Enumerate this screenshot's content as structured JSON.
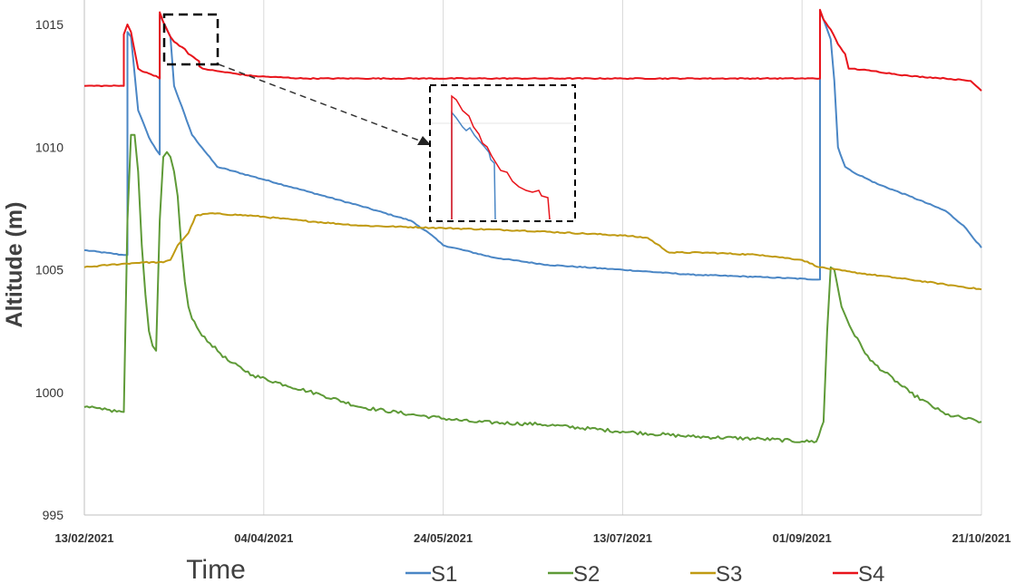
{
  "chart_data": {
    "type": "line",
    "xlabel": "Time",
    "ylabel": "Altitude (m)",
    "ylim": [
      995,
      1016
    ],
    "yticks": [
      995,
      1000,
      1005,
      1010,
      1015
    ],
    "xlim": [
      "2021-02-13",
      "2021-10-21"
    ],
    "xticks": [
      "13/02/2021",
      "04/04/2021",
      "24/05/2021",
      "13/07/2021",
      "01/09/2021",
      "21/10/2021"
    ],
    "grid": "vertical",
    "legend": "bottom",
    "series": [
      {
        "name": "S1",
        "color": "#4a86c5",
        "x": [
          "2021-02-13",
          "2021-02-24",
          "2021-02-25",
          "2021-02-25",
          "2021-02-26",
          "2021-02-28",
          "2021-03-03",
          "2021-03-05",
          "2021-03-06",
          "2021-03-06",
          "2021-03-07",
          "2021-03-09",
          "2021-03-10",
          "2021-03-15",
          "2021-03-22",
          "2021-04-01",
          "2021-04-16",
          "2021-05-01",
          "2021-05-15",
          "2021-05-20",
          "2021-05-24",
          "2021-06-07",
          "2021-06-22",
          "2021-07-13",
          "2021-08-01",
          "2021-08-21",
          "2021-09-06",
          "2021-09-06",
          "2021-09-07",
          "2021-09-09",
          "2021-09-10",
          "2021-09-11",
          "2021-09-13",
          "2021-09-15",
          "2021-09-22",
          "2021-10-01",
          "2021-10-11",
          "2021-10-16",
          "2021-10-21"
        ],
        "values": [
          1005.8,
          1005.6,
          1005.6,
          1014.7,
          1014.5,
          1011.5,
          1010.4,
          1009.9,
          1009.7,
          1015.4,
          1015.1,
          1014.5,
          1012.5,
          1010.5,
          1009.2,
          1008.8,
          1008.2,
          1007.6,
          1007.0,
          1006.5,
          1006.0,
          1005.5,
          1005.2,
          1005.0,
          1004.8,
          1004.7,
          1004.6,
          1015.5,
          1015.2,
          1014.4,
          1012.7,
          1010.0,
          1009.2,
          1009.0,
          1008.5,
          1008.0,
          1007.4,
          1006.8,
          1005.9
        ]
      },
      {
        "name": "S2",
        "color": "#5e9a37",
        "x": [
          "2021-02-13",
          "2021-02-18",
          "2021-02-24",
          "2021-02-25",
          "2021-02-26",
          "2021-02-27",
          "2021-02-28",
          "2021-03-01",
          "2021-03-02",
          "2021-03-03",
          "2021-03-04",
          "2021-03-05",
          "2021-03-06",
          "2021-03-07",
          "2021-03-08",
          "2021-03-09",
          "2021-03-10",
          "2021-03-11",
          "2021-03-12",
          "2021-03-13",
          "2021-03-14",
          "2021-03-15",
          "2021-03-17",
          "2021-03-20",
          "2021-03-25",
          "2021-04-01",
          "2021-04-10",
          "2021-04-20",
          "2021-05-01",
          "2021-05-15",
          "2021-06-01",
          "2021-06-20",
          "2021-07-13",
          "2021-08-01",
          "2021-08-21",
          "2021-09-01",
          "2021-09-05",
          "2021-09-07",
          "2021-09-08",
          "2021-09-09",
          "2021-09-10",
          "2021-09-12",
          "2021-09-15",
          "2021-09-20",
          "2021-10-01",
          "2021-10-11",
          "2021-10-21"
        ],
        "values": [
          999.4,
          999.3,
          999.2,
          1007.0,
          1010.5,
          1010.5,
          1009.0,
          1006.0,
          1004.0,
          1002.5,
          1001.9,
          1001.7,
          1007.0,
          1009.6,
          1009.8,
          1009.6,
          1009.0,
          1008.0,
          1006.0,
          1004.5,
          1003.5,
          1003.0,
          1002.5,
          1002.0,
          1001.3,
          1000.7,
          1000.3,
          999.9,
          999.4,
          999.1,
          998.8,
          998.7,
          998.4,
          998.2,
          998.1,
          998.0,
          998.0,
          998.8,
          1002.5,
          1005.1,
          1005.0,
          1003.5,
          1002.5,
          1001.3,
          1000.0,
          999.1,
          998.8
        ]
      },
      {
        "name": "S3",
        "color": "#c09a12",
        "x": [
          "2021-02-13",
          "2021-02-20",
          "2021-03-01",
          "2021-03-07",
          "2021-03-09",
          "2021-03-11",
          "2021-03-14",
          "2021-03-16",
          "2021-03-20",
          "2021-04-01",
          "2021-04-15",
          "2021-05-01",
          "2021-05-24",
          "2021-06-15",
          "2021-07-13",
          "2021-07-20",
          "2021-07-26",
          "2021-08-05",
          "2021-08-21",
          "2021-09-01",
          "2021-09-06",
          "2021-09-15",
          "2021-10-01",
          "2021-10-11",
          "2021-10-21"
        ],
        "values": [
          1005.1,
          1005.2,
          1005.3,
          1005.3,
          1005.4,
          1006.0,
          1006.5,
          1007.2,
          1007.3,
          1007.2,
          1007.0,
          1006.8,
          1006.7,
          1006.6,
          1006.4,
          1006.3,
          1005.7,
          1005.7,
          1005.6,
          1005.4,
          1005.1,
          1004.9,
          1004.6,
          1004.4,
          1004.2
        ]
      },
      {
        "name": "S4",
        "color": "#e8141b",
        "x": [
          "2021-02-13",
          "2021-02-24",
          "2021-02-24",
          "2021-02-25",
          "2021-02-26",
          "2021-02-28",
          "2021-03-01",
          "2021-03-03",
          "2021-03-05",
          "2021-03-06",
          "2021-03-06",
          "2021-03-07",
          "2021-03-08",
          "2021-03-09",
          "2021-03-10",
          "2021-03-13",
          "2021-03-14",
          "2021-03-16",
          "2021-03-17",
          "2021-03-17",
          "2021-03-18",
          "2021-03-22",
          "2021-04-01",
          "2021-04-15",
          "2021-05-01",
          "2021-06-01",
          "2021-07-13",
          "2021-08-21",
          "2021-09-06",
          "2021-09-06",
          "2021-09-07",
          "2021-09-09",
          "2021-09-11",
          "2021-09-13",
          "2021-09-14",
          "2021-09-15",
          "2021-09-21",
          "2021-10-01",
          "2021-10-11",
          "2021-10-18",
          "2021-10-21"
        ],
        "values": [
          1012.5,
          1012.5,
          1014.6,
          1015.0,
          1014.7,
          1013.2,
          1013.1,
          1013.0,
          1012.9,
          1012.8,
          1015.5,
          1015.1,
          1014.8,
          1014.5,
          1014.3,
          1014.0,
          1013.8,
          1013.6,
          1013.5,
          1013.3,
          1013.2,
          1013.1,
          1012.9,
          1012.8,
          1012.8,
          1012.8,
          1012.8,
          1012.8,
          1012.8,
          1015.6,
          1015.2,
          1014.8,
          1014.2,
          1013.8,
          1013.2,
          1013.2,
          1013.1,
          1012.9,
          1012.8,
          1012.7,
          1012.3
        ]
      }
    ],
    "inset": {
      "series_names": [
        "S1",
        "S4"
      ],
      "series_colors": [
        "#4a86c5",
        "#e8141b"
      ]
    }
  }
}
